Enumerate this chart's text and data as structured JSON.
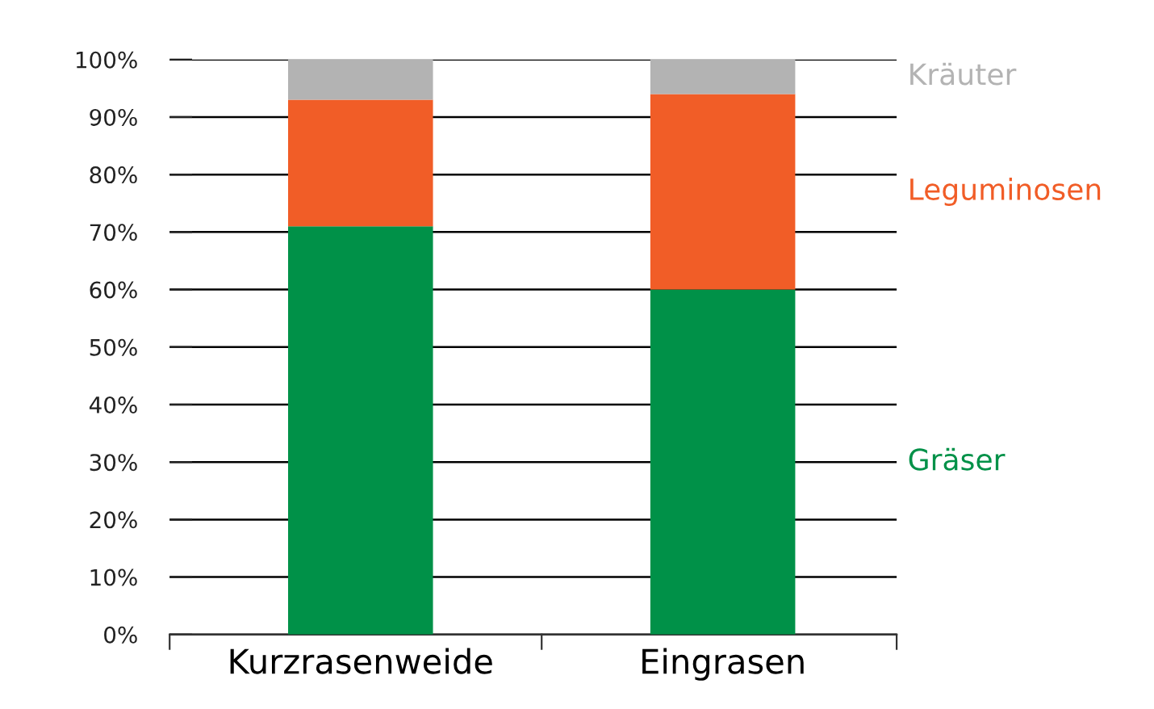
{
  "chart_data": {
    "type": "bar",
    "stacked": true,
    "categories": [
      "Kurzrasenweide",
      "Eingrasen"
    ],
    "series": [
      {
        "name": "Gräser",
        "color": "#009148",
        "values": [
          71,
          60
        ]
      },
      {
        "name": "Leguminosen",
        "color": "#f15d27",
        "values": [
          22,
          34
        ]
      },
      {
        "name": "Kräuter",
        "color": "#b3b3b3",
        "values": [
          7,
          6
        ]
      }
    ],
    "ylim": [
      0,
      100
    ],
    "yticks": [
      {
        "value": 0,
        "label": "0%"
      },
      {
        "value": 10,
        "label": "10%"
      },
      {
        "value": 20,
        "label": "20%"
      },
      {
        "value": 30,
        "label": "30%"
      },
      {
        "value": 40,
        "label": "40%"
      },
      {
        "value": 50,
        "label": "50%"
      },
      {
        "value": 60,
        "label": "60%"
      },
      {
        "value": 70,
        "label": "70%"
      },
      {
        "value": 80,
        "label": "80%"
      },
      {
        "value": 90,
        "label": "90%"
      },
      {
        "value": 100,
        "label": "100%"
      }
    ],
    "grid": "y",
    "legend": "right"
  }
}
